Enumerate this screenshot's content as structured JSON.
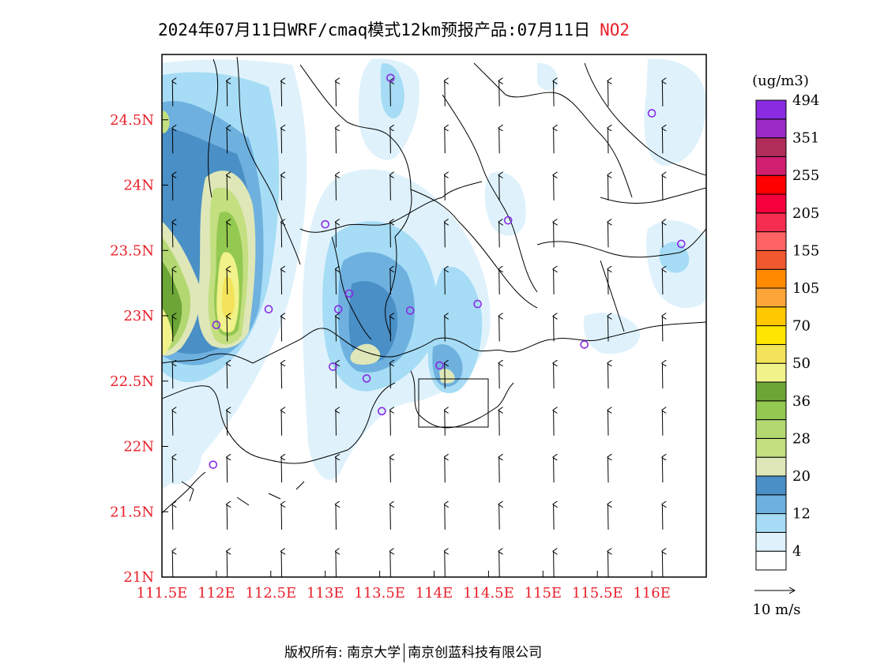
{
  "header": {
    "title": "2024年07月11日WRF/cmaq模式12km预报产品:07月11日",
    "pollutant": "NO2"
  },
  "map": {
    "lon_range": [
      111.5,
      116.5
    ],
    "lat_range": [
      21,
      25
    ],
    "lon_ticks": [
      "111.5E",
      "112E",
      "112.5E",
      "113E",
      "113.5E",
      "114E",
      "114.5E",
      "115E",
      "115.5E",
      "116E"
    ],
    "lat_ticks": [
      "21N",
      "21.5N",
      "22N",
      "22.5N",
      "23N",
      "23.5N",
      "24N",
      "24.5N"
    ],
    "wind_direction": "south-to-north",
    "station_marker_color": "#8a2be2",
    "stations": [
      {
        "lon": 113.6,
        "lat": 24.82
      },
      {
        "lon": 116.0,
        "lat": 24.55
      },
      {
        "lon": 113.0,
        "lat": 23.7
      },
      {
        "lon": 114.68,
        "lat": 23.73
      },
      {
        "lon": 116.27,
        "lat": 23.55
      },
      {
        "lon": 113.22,
        "lat": 23.17
      },
      {
        "lon": 112.48,
        "lat": 23.05
      },
      {
        "lon": 113.12,
        "lat": 23.05
      },
      {
        "lon": 113.78,
        "lat": 23.04
      },
      {
        "lon": 114.4,
        "lat": 23.09
      },
      {
        "lon": 112.0,
        "lat": 22.93
      },
      {
        "lon": 115.38,
        "lat": 22.78
      },
      {
        "lon": 113.07,
        "lat": 22.61
      },
      {
        "lon": 113.38,
        "lat": 22.52
      },
      {
        "lon": 114.05,
        "lat": 22.62
      },
      {
        "lon": 113.52,
        "lat": 22.27
      },
      {
        "lon": 111.97,
        "lat": 21.86
      }
    ]
  },
  "legend": {
    "unit": "(ug/m3)",
    "colors": [
      "#ffffff",
      "#dff2fc",
      "#a6dcf5",
      "#6eb1df",
      "#4a8fc6",
      "#dfe7b8",
      "#c3df80",
      "#b3d872",
      "#93c851",
      "#6da637",
      "#f2f28a",
      "#f2e35a",
      "#ffe600",
      "#ffc800",
      "#fca63a",
      "#ff8a00",
      "#f0582e",
      "#ff6363",
      "#f52d4e",
      "#f5003c",
      "#ff0000",
      "#d01f6e",
      "#b02d5a",
      "#9a2bc6",
      "#8a2be2"
    ],
    "labels": [
      "4",
      "12",
      "20",
      "28",
      "36",
      "50",
      "70",
      "105",
      "155",
      "205",
      "255",
      "351",
      "494"
    ],
    "wind_scale": "10 m/s"
  },
  "footer": {
    "copyright": "版权所有: 南京大学",
    "company": "南京创蓝科技有限公司"
  }
}
